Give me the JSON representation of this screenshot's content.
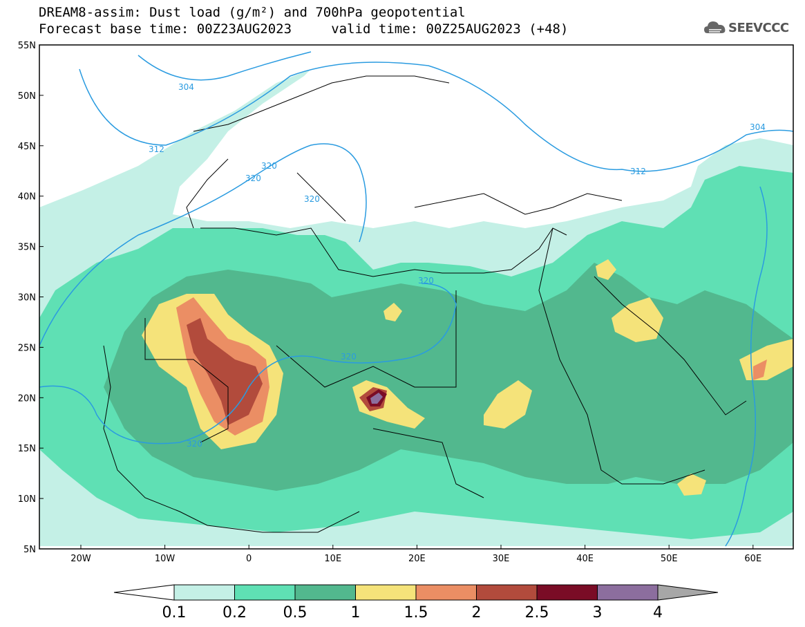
{
  "header": {
    "title_line1": "DREAM8-assim: Dust load (g/m²) and 700hPa geopotential",
    "title_line2": "Forecast base time: 00Z23AUG2023     valid time: 00Z25AUG2023 (+48)"
  },
  "logo": {
    "text": "SEEVCCC",
    "icon": "cloud-logo-icon"
  },
  "map": {
    "lat_labels": [
      "55N",
      "50N",
      "45N",
      "40N",
      "35N",
      "30N",
      "25N",
      "20N",
      "15N",
      "10N",
      "5N"
    ],
    "lon_labels": [
      "20W",
      "10W",
      "0",
      "10E",
      "20E",
      "30E",
      "40E",
      "50E",
      "60E"
    ],
    "contour_labels": [
      "304",
      "312",
      "320",
      "320",
      "320",
      "320",
      "320",
      "312",
      "304",
      "320"
    ]
  },
  "colorbar": {
    "ticks": [
      "0.1",
      "0.2",
      "0.5",
      "1",
      "1.5",
      "2",
      "2.5",
      "3",
      "4"
    ],
    "colors": [
      "#ffffff",
      "#c4f0e6",
      "#5fe0b4",
      "#52b88e",
      "#f5e37a",
      "#eb8e64",
      "#b24b3c",
      "#7a0c26",
      "#8c6e9e",
      "#a7a7a7"
    ]
  },
  "colors": {
    "dust_0_1": "#c4f0e6",
    "dust_0_2": "#5fe0b4",
    "dust_0_5": "#52b88e",
    "dust_1": "#f5e37a",
    "dust_1_5": "#eb8e64",
    "dust_2": "#b24b3c",
    "dust_2_5": "#7a0c26",
    "dust_3": "#8c6e9e",
    "contour": "#2a9be0"
  }
}
